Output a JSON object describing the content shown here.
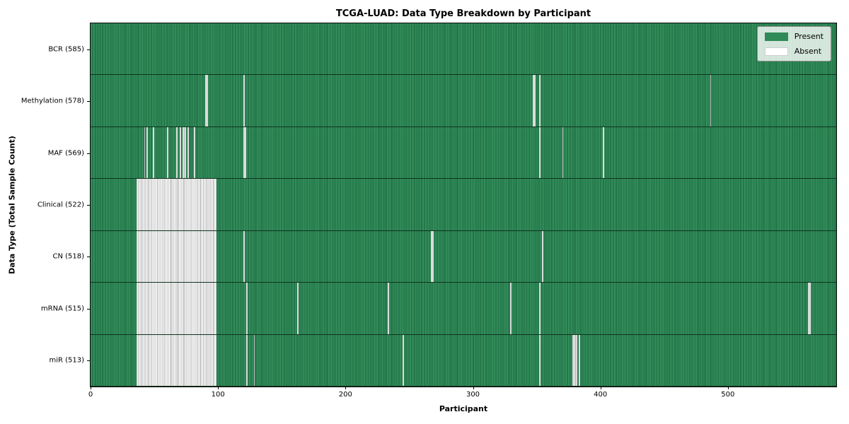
{
  "chart_data": {
    "type": "heatmap",
    "title": "TCGA-LUAD: Data Type Breakdown by Participant",
    "xlabel": "Participant",
    "ylabel": "Data Type (Total Sample Count)",
    "x_ticks": [
      0,
      100,
      200,
      300,
      400,
      500
    ],
    "x_range": [
      0,
      585
    ],
    "total_participants": 585,
    "present_color": "#2e8b57",
    "absent_color": "#ffffff",
    "legend_position": "upper right",
    "grid": false,
    "legend_items": [
      {
        "label": "Present",
        "color": "#2e8b57"
      },
      {
        "label": "Absent",
        "color": "#ffffff"
      }
    ],
    "rows": [
      {
        "name": "BCR",
        "count": 585,
        "label": "BCR (585)",
        "absent": []
      },
      {
        "name": "Methylation",
        "count": 578,
        "label": "Methylation (578)",
        "absent": [
          90,
          91,
          120,
          347,
          348,
          352,
          486
        ]
      },
      {
        "name": "MAF",
        "count": 569,
        "label": "MAF (569)",
        "absent": [
          42,
          44,
          49,
          60,
          67,
          70,
          72,
          73,
          74,
          76,
          81,
          120,
          121,
          352,
          370,
          402
        ]
      },
      {
        "name": "Clinical",
        "count": 522,
        "label": "Clinical (522)",
        "absent": [
          "36-98"
        ]
      },
      {
        "name": "CN",
        "count": 518,
        "label": "CN (518)",
        "absent": [
          "36-98",
          120,
          267,
          268,
          354
        ]
      },
      {
        "name": "mRNA",
        "count": 515,
        "label": "mRNA (515)",
        "absent": [
          "36-98",
          122,
          162,
          233,
          329,
          352,
          563,
          564
        ]
      },
      {
        "name": "miR",
        "count": 513,
        "label": "miR (513)",
        "absent": [
          "36-98",
          122,
          128,
          245,
          352,
          378,
          379,
          380,
          381,
          383
        ]
      }
    ]
  }
}
